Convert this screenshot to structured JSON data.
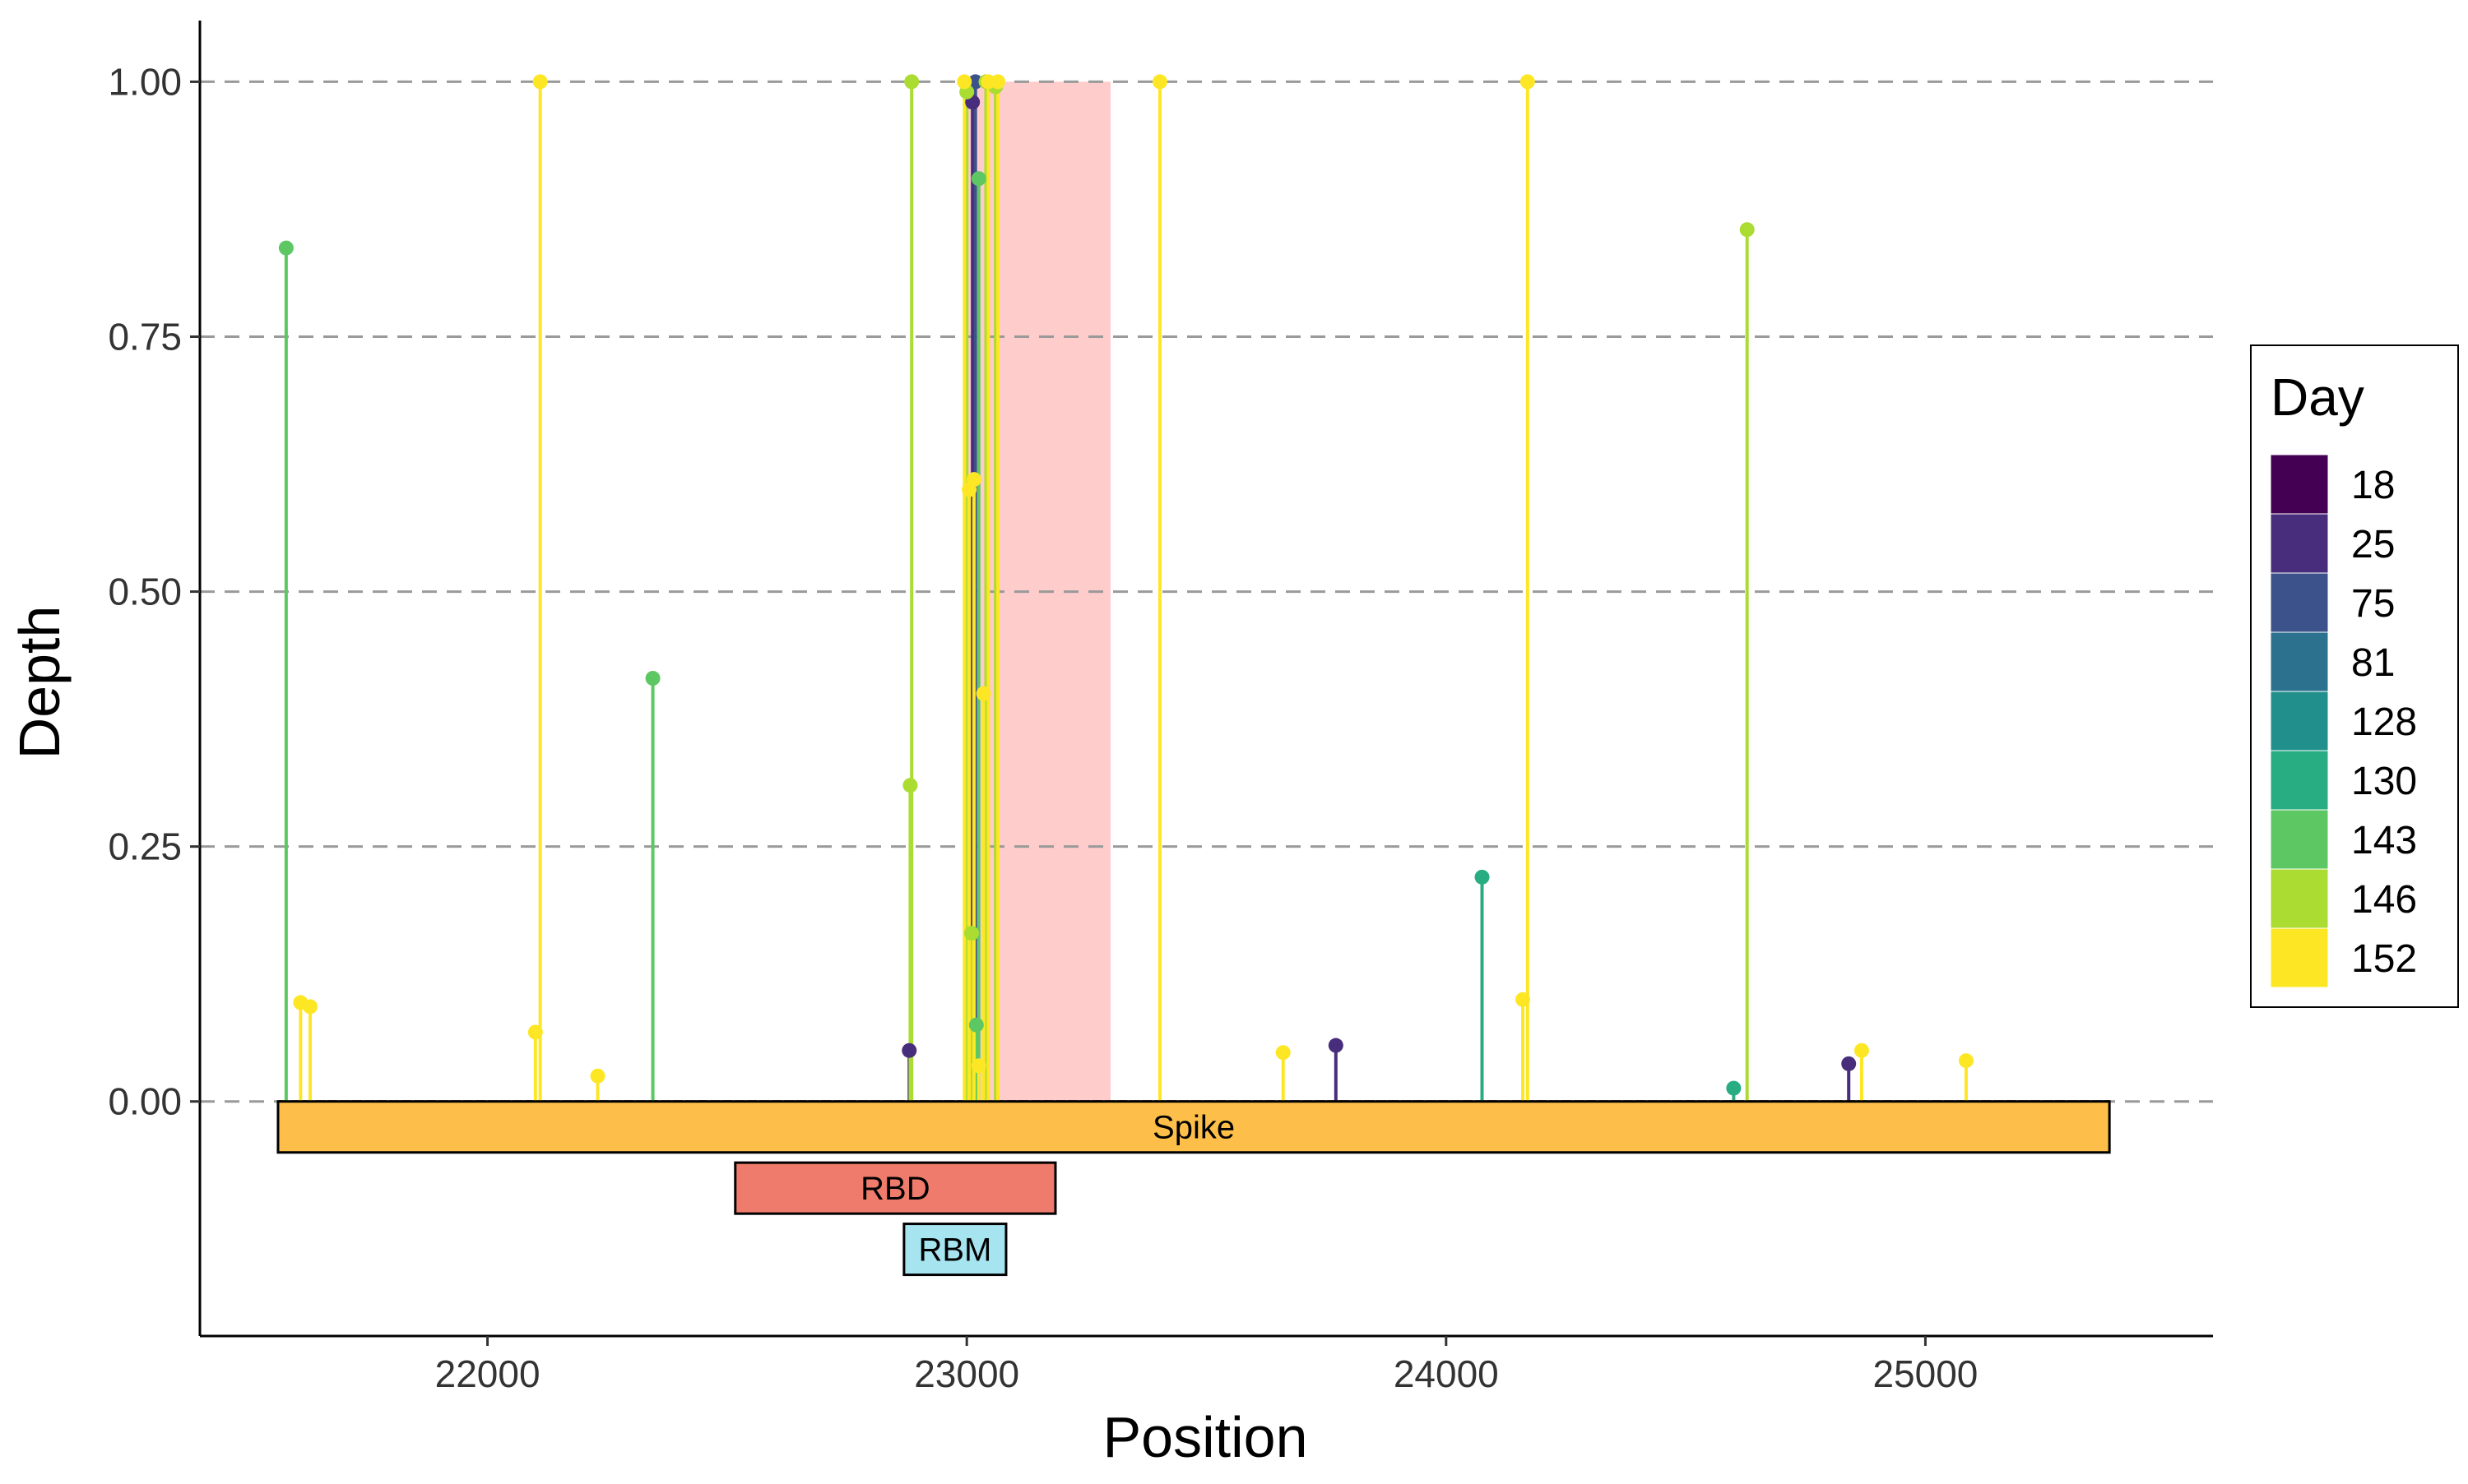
{
  "chart_data": {
    "type": "lollipop",
    "xlabel": "Position",
    "ylabel": "Depth",
    "xlim": [
      21400,
      25600
    ],
    "ylim": [
      -0.23,
      1.06
    ],
    "x_ticks": [
      22000,
      23000,
      24000,
      25000
    ],
    "y_ticks": [
      0.0,
      0.25,
      0.5,
      0.75,
      1.0
    ],
    "y_tick_labels": [
      "0.00",
      "0.25",
      "0.50",
      "0.75",
      "1.00"
    ],
    "grid": "horizontal dashed",
    "legend": {
      "title": "Day",
      "placement": "right",
      "entries": [
        {
          "label": "18",
          "color": "#440154"
        },
        {
          "label": "25",
          "color": "#472D7B"
        },
        {
          "label": "75",
          "color": "#3B528B"
        },
        {
          "label": "81",
          "color": "#2C728E"
        },
        {
          "label": "128",
          "color": "#21908C"
        },
        {
          "label": "130",
          "color": "#27AD81"
        },
        {
          "label": "143",
          "color": "#5DC863"
        },
        {
          "label": "146",
          "color": "#AADC32"
        },
        {
          "label": "152",
          "color": "#FDE725"
        }
      ]
    },
    "highlight_region": {
      "x_start": 23000,
      "x_end": 23300,
      "color": "#FFCCCC"
    },
    "domains": [
      {
        "label": "Spike",
        "x_start": 21563,
        "x_end": 25384,
        "y_top": 0.0,
        "y_bottom": -0.05,
        "color": "#FDBF4A"
      },
      {
        "label": "RBD",
        "x_start": 22517,
        "x_end": 23185,
        "y_top": -0.06,
        "y_bottom": -0.11,
        "color": "#EE7B6B"
      },
      {
        "label": "RBM",
        "x_start": 22869,
        "x_end": 23082,
        "y_top": -0.12,
        "y_bottom": -0.17,
        "color": "#A6E4F0"
      }
    ],
    "series": [
      {
        "name": "18",
        "points": []
      },
      {
        "name": "25",
        "points": [
          {
            "x": 22880,
            "y": 0.05
          },
          {
            "x": 23012,
            "y": 0.98
          },
          {
            "x": 23770,
            "y": 0.055
          },
          {
            "x": 24840,
            "y": 0.037
          }
        ]
      },
      {
        "name": "75",
        "points": [
          {
            "x": 23018,
            "y": 1.0
          }
        ]
      },
      {
        "name": "81",
        "points": []
      },
      {
        "name": "128",
        "points": []
      },
      {
        "name": "130",
        "points": [
          {
            "x": 24075,
            "y": 0.22
          },
          {
            "x": 24600,
            "y": 0.013
          }
        ]
      },
      {
        "name": "143",
        "points": [
          {
            "x": 21580,
            "y": 0.837
          },
          {
            "x": 22345,
            "y": 0.415
          },
          {
            "x": 23025,
            "y": 0.905
          },
          {
            "x": 23020,
            "y": 0.075
          }
        ]
      },
      {
        "name": "146",
        "points": [
          {
            "x": 22885,
            "y": 1.0
          },
          {
            "x": 22882,
            "y": 0.31
          },
          {
            "x": 23000,
            "y": 0.99
          },
          {
            "x": 23010,
            "y": 0.165
          },
          {
            "x": 23040,
            "y": 1.0
          },
          {
            "x": 23060,
            "y": 0.995
          },
          {
            "x": 24628,
            "y": 0.855
          }
        ]
      },
      {
        "name": "152",
        "points": [
          {
            "x": 21610,
            "y": 0.097
          },
          {
            "x": 21630,
            "y": 0.093
          },
          {
            "x": 22100,
            "y": 0.068
          },
          {
            "x": 22110,
            "y": 1.0
          },
          {
            "x": 22230,
            "y": 0.025
          },
          {
            "x": 22995,
            "y": 1.0
          },
          {
            "x": 23005,
            "y": 0.6
          },
          {
            "x": 23015,
            "y": 0.61
          },
          {
            "x": 23035,
            "y": 0.4
          },
          {
            "x": 23045,
            "y": 1.0
          },
          {
            "x": 23065,
            "y": 1.0
          },
          {
            "x": 23025,
            "y": 0.035
          },
          {
            "x": 23403,
            "y": 1.0
          },
          {
            "x": 23660,
            "y": 0.048
          },
          {
            "x": 24160,
            "y": 0.1
          },
          {
            "x": 24170,
            "y": 1.0
          },
          {
            "x": 24867,
            "y": 0.05
          },
          {
            "x": 25085,
            "y": 0.04
          }
        ]
      }
    ]
  }
}
